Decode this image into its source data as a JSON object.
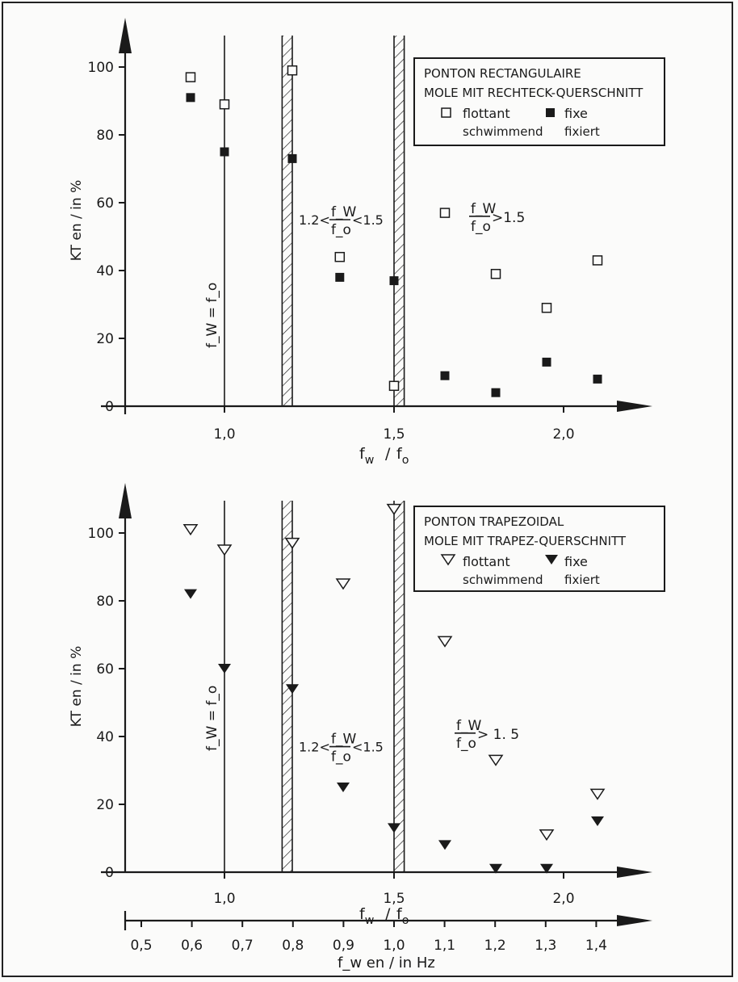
{
  "chart_data": [
    {
      "type": "scatter",
      "xlabel": "f_w / f_o",
      "ylabel": "KT en / in %",
      "x_ticks": [
        "1,0",
        "1,5",
        "2,0"
      ],
      "y_ticks": [
        "0",
        "20",
        "40",
        "60",
        "80",
        "100"
      ],
      "ylim": [
        0,
        110
      ],
      "xlim": [
        0.7,
        2.35
      ],
      "legend": {
        "title_line1": "PONTON RECTANGULAIRE",
        "title_line2": "MOLE MIT RECHTECK-QUERSCHNITT",
        "open_label_1": "flottant",
        "open_label_2": "schwimmend",
        "filled_label_1": "fixe",
        "filled_label_2": "fixiert",
        "placement": "top-right"
      },
      "annotations": {
        "resonance": "f_W = f_o",
        "band_left": "1.2<",
        "band_right": "<1.5",
        "band_frac_num": "f_W",
        "band_frac_den": "f_o",
        "high_right": ">1.5",
        "high_frac_num": "f_W",
        "high_frac_den": "f_o"
      },
      "band": [
        1.17,
        1.53
      ],
      "resonance_x": 1.0,
      "series": [
        {
          "name": "flottant / schwimmend",
          "marker": "open-square",
          "x": [
            0.9,
            1.0,
            1.2,
            1.34,
            1.5,
            1.65,
            1.8,
            1.95,
            2.1
          ],
          "y": [
            97,
            89,
            99,
            44,
            6,
            57,
            39,
            29,
            43
          ]
        },
        {
          "name": "fixe / fixiert",
          "marker": "filled-square",
          "x": [
            0.9,
            1.0,
            1.2,
            1.34,
            1.5,
            1.65,
            1.8,
            1.95,
            2.1
          ],
          "y": [
            91,
            75,
            73,
            38,
            37,
            9,
            4,
            13,
            8
          ]
        }
      ]
    },
    {
      "type": "scatter",
      "xlabel": "f_w / f_o",
      "ylabel": "KT en / in %",
      "x_ticks": [
        "1,0",
        "1,5",
        "2,0"
      ],
      "y_ticks": [
        "0",
        "20",
        "40",
        "60",
        "80",
        "100"
      ],
      "ylim": [
        0,
        110
      ],
      "xlim": [
        0.7,
        2.35
      ],
      "legend": {
        "title_line1": "PONTON TRAPEZOIDAL",
        "title_line2": "MOLE MIT TRAPEZ-QUERSCHNITT",
        "open_label_1": "flottant",
        "open_label_2": "schwimmend",
        "filled_label_1": "fixe",
        "filled_label_2": "fixiert",
        "placement": "top-right"
      },
      "annotations": {
        "resonance": "f_W = f_o",
        "band_left": "1.2<",
        "band_right": "<1.5",
        "band_frac_num": "f_W",
        "band_frac_den": "f_o",
        "high_right": "> 1. 5",
        "high_frac_num": "f_W",
        "high_frac_den": "f_o"
      },
      "band": [
        1.17,
        1.53
      ],
      "resonance_x": 1.0,
      "series": [
        {
          "name": "flottant / schwimmend",
          "marker": "open-triangle",
          "x": [
            0.9,
            1.0,
            1.2,
            1.35,
            1.5,
            1.65,
            1.8,
            1.95,
            2.1
          ],
          "y": [
            101,
            95,
            97,
            85,
            107,
            68,
            33,
            11,
            23
          ]
        },
        {
          "name": "fixe / fixiert",
          "marker": "filled-triangle",
          "x": [
            0.9,
            1.0,
            1.2,
            1.35,
            1.5,
            1.65,
            1.8,
            1.95,
            2.1
          ],
          "y": [
            82,
            60,
            54,
            25,
            13,
            8,
            1,
            1,
            15
          ]
        }
      ]
    }
  ],
  "hz_axis": {
    "label": "f_w en / in Hz",
    "ticks": [
      "0,5",
      "0,6",
      "0,7",
      "0,8",
      "0,9",
      "1,0",
      "1,1",
      "1,2",
      "1,3",
      "1,4"
    ],
    "values": [
      0.5,
      0.6,
      0.7,
      0.8,
      0.9,
      1.0,
      1.1,
      1.2,
      1.3,
      1.4
    ]
  }
}
